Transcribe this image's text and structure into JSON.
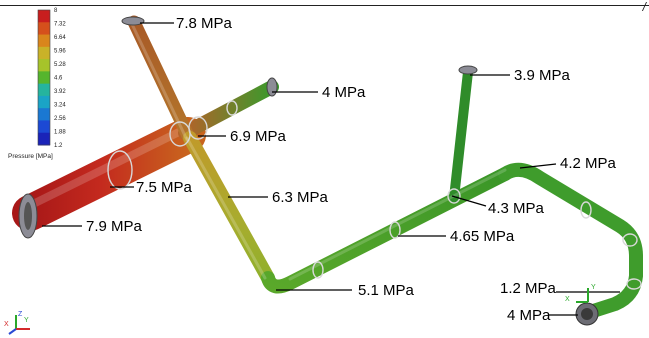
{
  "header_mark": "/",
  "legend": {
    "title": "Pressure [MPa]",
    "ticks": [
      "8",
      "7.32",
      "6.64",
      "5.96",
      "5.28",
      "4.6",
      "3.92",
      "3.24",
      "2.56",
      "1.88",
      "1.2"
    ],
    "colors": [
      "#c81e1e",
      "#d5501c",
      "#d9861c",
      "#c9b228",
      "#a6c32a",
      "#55b52d",
      "#25b49e",
      "#1aa4c6",
      "#1a78d2",
      "#1c49d4",
      "#1a23b8"
    ]
  },
  "callouts": [
    {
      "id": "top-left-outlet",
      "text": "7.8 MPa"
    },
    {
      "id": "upper-branch-end",
      "text": "4 MPa"
    },
    {
      "id": "cross-junction",
      "text": "6.9 MPa"
    },
    {
      "id": "inlet-mid",
      "text": "7.5 MPa"
    },
    {
      "id": "inlet-end",
      "text": "7.9 MPa"
    },
    {
      "id": "descending-leg",
      "text": "6.3 MPa"
    },
    {
      "id": "lower-elbow",
      "text": "5.1 MPa"
    },
    {
      "id": "main-run",
      "text": "4.65 MPa"
    },
    {
      "id": "riser-top",
      "text": "3.9 MPa"
    },
    {
      "id": "riser-tee",
      "text": "4.3 MPa"
    },
    {
      "id": "right-elbow",
      "text": "4.2 MPa"
    },
    {
      "id": "outlet-upper",
      "text": "1.2 MPa"
    },
    {
      "id": "outlet-lower",
      "text": "4 MPa"
    }
  ],
  "triad": {
    "x": "X",
    "y": "Y",
    "z": "Z"
  }
}
